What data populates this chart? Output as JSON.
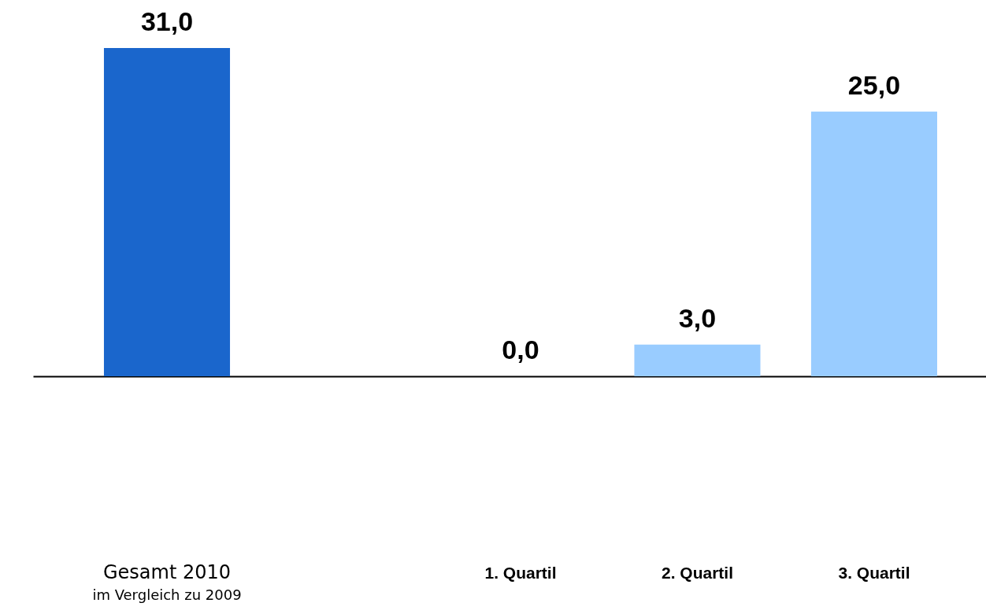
{
  "chart_data": {
    "type": "bar",
    "categories": [
      "Gesamt 2010",
      null,
      "1. Quartil",
      "2. Quartil",
      "3. Quartil"
    ],
    "values": [
      31.0,
      null,
      0.0,
      3.0,
      25.0
    ],
    "colors": [
      "#1a66cc",
      null,
      "#99ccff",
      "#99ccff",
      "#99ccff"
    ],
    "value_labels": [
      "31,0",
      null,
      "0,0",
      "3,0",
      "25,0"
    ],
    "annotations": [
      "im Vergleich zu 2009"
    ]
  }
}
